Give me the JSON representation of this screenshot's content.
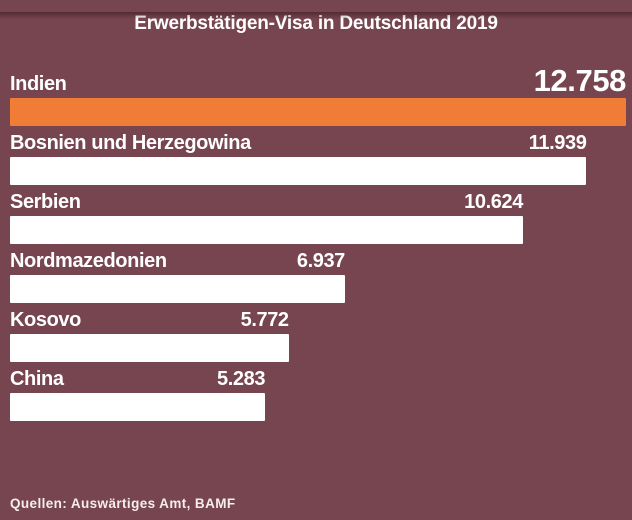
{
  "page": {
    "background_color": "#76454F",
    "accent_color": "#F07C35",
    "bar_color": "#FFFFFF",
    "text_color": "#FFFFFF"
  },
  "header": {
    "title": "Erwerbstätigen-Visa in Deutschland 2019"
  },
  "footer": {
    "source": "Quellen: Auswärtiges Amt, BAMF"
  },
  "chart_data": {
    "type": "bar",
    "orientation": "horizontal",
    "title": "Erwerbstätigen-Visa in Deutschland 2019",
    "categories": [
      "Indien",
      "Bosnien und Herzegowina",
      "Serbien",
      "Nordmazedonien",
      "Kosovo",
      "China"
    ],
    "values": [
      12758,
      11939,
      10624,
      6937,
      5772,
      5283
    ],
    "value_labels": [
      "12.758",
      "11.939",
      "10.624",
      "6.937",
      "5.772",
      "5.283"
    ],
    "highlight_index": 0,
    "xlim": [
      0,
      12758
    ],
    "grid": false,
    "legend": false,
    "bar_colors": {
      "highlight": "#F07C35",
      "default": "#FFFFFF"
    },
    "source": "Quellen: Auswärtiges Amt, BAMF"
  }
}
